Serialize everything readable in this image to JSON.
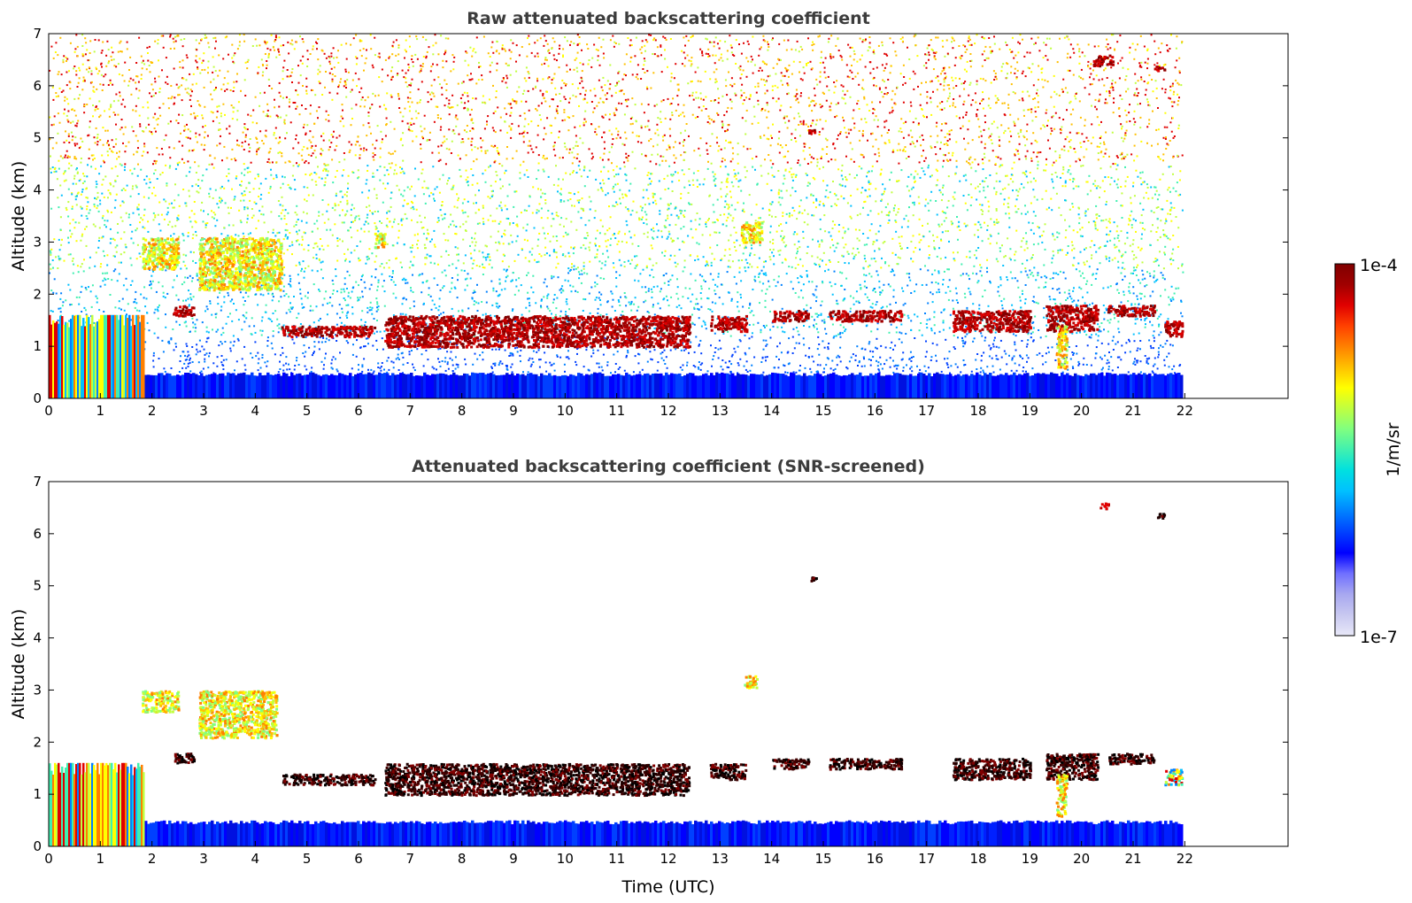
{
  "chart_data": [
    {
      "type": "heatmap",
      "title": "Raw attenuated backscattering coefficient",
      "xlabel": "",
      "ylabel": "Altitude (km)",
      "xlim": [
        0,
        24
      ],
      "ylim": [
        0,
        7
      ],
      "xticks": [
        "0",
        "1",
        "2",
        "3",
        "4",
        "5",
        "6",
        "7",
        "8",
        "9",
        "10",
        "11",
        "12",
        "13",
        "14",
        "15",
        "16",
        "17",
        "18",
        "19",
        "20",
        "21",
        "22"
      ],
      "yticks": [
        "0",
        "1",
        "2",
        "3",
        "4",
        "5",
        "6",
        "7"
      ],
      "data_time_range": [
        0,
        21.95
      ],
      "features": [
        {
          "kind": "boundary_layer",
          "x": [
            0,
            21.95
          ],
          "y": [
            0,
            0.5
          ],
          "level": "low"
        },
        {
          "kind": "dense_cloud",
          "x": [
            0,
            1.85
          ],
          "y": [
            0,
            1.6
          ],
          "level": "mixed"
        },
        {
          "kind": "aerosol_layer",
          "x": [
            1.8,
            2.5
          ],
          "y": [
            2.5,
            3.1
          ],
          "level": "mid"
        },
        {
          "kind": "aerosol_layer",
          "x": [
            2.9,
            4.5
          ],
          "y": [
            2.1,
            3.1
          ],
          "level": "mid"
        },
        {
          "kind": "aerosol_layer",
          "x": [
            6.3,
            6.5
          ],
          "y": [
            2.9,
            3.2
          ],
          "level": "mid"
        },
        {
          "kind": "aerosol_layer",
          "x": [
            13.4,
            13.8
          ],
          "y": [
            3.0,
            3.4
          ],
          "level": "mid"
        },
        {
          "kind": "cloud_layer",
          "x": [
            2.4,
            2.8
          ],
          "y": [
            1.6,
            1.8
          ],
          "level": "high"
        },
        {
          "kind": "cloud_layer",
          "x": [
            4.5,
            6.3
          ],
          "y": [
            1.2,
            1.4
          ],
          "level": "high"
        },
        {
          "kind": "cloud_layer",
          "x": [
            6.5,
            12.4
          ],
          "y": [
            1.0,
            1.6
          ],
          "level": "high"
        },
        {
          "kind": "cloud_layer",
          "x": [
            12.8,
            13.5
          ],
          "y": [
            1.3,
            1.6
          ],
          "level": "high"
        },
        {
          "kind": "cloud_layer",
          "x": [
            14.0,
            14.7
          ],
          "y": [
            1.5,
            1.7
          ],
          "level": "high"
        },
        {
          "kind": "cloud_layer",
          "x": [
            15.1,
            16.5
          ],
          "y": [
            1.5,
            1.7
          ],
          "level": "high"
        },
        {
          "kind": "cloud_layer",
          "x": [
            17.5,
            19.0
          ],
          "y": [
            1.3,
            1.7
          ],
          "level": "high"
        },
        {
          "kind": "cloud_layer",
          "x": [
            19.3,
            20.3
          ],
          "y": [
            1.3,
            1.8
          ],
          "level": "high"
        },
        {
          "kind": "cloud_layer",
          "x": [
            20.5,
            21.4
          ],
          "y": [
            1.6,
            1.8
          ],
          "level": "high"
        },
        {
          "kind": "cloud_layer",
          "x": [
            21.6,
            21.95
          ],
          "y": [
            1.2,
            1.5
          ],
          "level": "high"
        },
        {
          "kind": "virga",
          "x": [
            19.5,
            19.7
          ],
          "y": [
            0.6,
            1.4
          ],
          "level": "mid"
        },
        {
          "kind": "cloud_patch",
          "x": [
            20.2,
            20.6
          ],
          "y": [
            6.4,
            6.6
          ],
          "level": "high"
        },
        {
          "kind": "cloud_patch",
          "x": [
            21.4,
            21.6
          ],
          "y": [
            6.3,
            6.4
          ],
          "level": "high"
        },
        {
          "kind": "cloud_patch",
          "x": [
            14.7,
            14.9
          ],
          "y": [
            5.1,
            5.2
          ],
          "level": "high"
        }
      ],
      "noise_region": {
        "x": [
          0,
          21.95
        ],
        "y": [
          0.5,
          7
        ]
      }
    },
    {
      "type": "heatmap",
      "title": "Attenuated backscattering coefficient (SNR-screened)",
      "xlabel": "Time (UTC)",
      "ylabel": "Altitude (km)",
      "xlim": [
        0,
        24
      ],
      "ylim": [
        0,
        7
      ],
      "xticks": [
        "0",
        "1",
        "2",
        "3",
        "4",
        "5",
        "6",
        "7",
        "8",
        "9",
        "10",
        "11",
        "12",
        "13",
        "14",
        "15",
        "16",
        "17",
        "18",
        "19",
        "20",
        "21",
        "22"
      ],
      "yticks": [
        "0",
        "1",
        "2",
        "3",
        "4",
        "5",
        "6",
        "7"
      ],
      "data_time_range": [
        0,
        21.95
      ],
      "features": [
        {
          "kind": "boundary_layer",
          "x": [
            1.8,
            21.95
          ],
          "y": [
            0,
            0.5
          ],
          "level": "low"
        },
        {
          "kind": "dense_cloud",
          "x": [
            0,
            1.85
          ],
          "y": [
            0,
            1.6
          ],
          "level": "mixed"
        },
        {
          "kind": "aerosol_layer",
          "x": [
            1.8,
            2.5
          ],
          "y": [
            2.6,
            3.0
          ],
          "level": "mid"
        },
        {
          "kind": "aerosol_layer",
          "x": [
            2.9,
            4.4
          ],
          "y": [
            2.1,
            3.0
          ],
          "level": "mid"
        },
        {
          "kind": "aerosol_layer",
          "x": [
            13.45,
            13.7
          ],
          "y": [
            3.05,
            3.3
          ],
          "level": "mid"
        },
        {
          "kind": "cloud_layer",
          "x": [
            2.4,
            2.8
          ],
          "y": [
            1.6,
            1.8
          ],
          "level": "black"
        },
        {
          "kind": "cloud_layer",
          "x": [
            4.5,
            6.3
          ],
          "y": [
            1.2,
            1.4
          ],
          "level": "black"
        },
        {
          "kind": "cloud_layer",
          "x": [
            6.5,
            12.4
          ],
          "y": [
            1.0,
            1.6
          ],
          "level": "black"
        },
        {
          "kind": "cloud_layer",
          "x": [
            12.8,
            13.5
          ],
          "y": [
            1.3,
            1.6
          ],
          "level": "black"
        },
        {
          "kind": "cloud_layer",
          "x": [
            14.0,
            14.7
          ],
          "y": [
            1.5,
            1.7
          ],
          "level": "black"
        },
        {
          "kind": "cloud_layer",
          "x": [
            15.1,
            16.5
          ],
          "y": [
            1.5,
            1.7
          ],
          "level": "black"
        },
        {
          "kind": "cloud_layer",
          "x": [
            17.5,
            19.0
          ],
          "y": [
            1.3,
            1.7
          ],
          "level": "black"
        },
        {
          "kind": "cloud_layer",
          "x": [
            19.3,
            20.3
          ],
          "y": [
            1.3,
            1.8
          ],
          "level": "black"
        },
        {
          "kind": "cloud_layer",
          "x": [
            20.5,
            21.4
          ],
          "y": [
            1.6,
            1.8
          ],
          "level": "black"
        },
        {
          "kind": "cloud_layer",
          "x": [
            21.6,
            21.95
          ],
          "y": [
            1.2,
            1.5
          ],
          "level": "mixed"
        },
        {
          "kind": "virga",
          "x": [
            19.5,
            19.7
          ],
          "y": [
            0.6,
            1.4
          ],
          "level": "mid"
        },
        {
          "kind": "cloud_patch",
          "x": [
            20.35,
            20.55
          ],
          "y": [
            6.5,
            6.6
          ],
          "level": "high"
        },
        {
          "kind": "cloud_patch",
          "x": [
            21.45,
            21.6
          ],
          "y": [
            6.3,
            6.4
          ],
          "level": "black"
        },
        {
          "kind": "cloud_patch",
          "x": [
            14.75,
            14.85
          ],
          "y": [
            5.1,
            5.2
          ],
          "level": "black"
        }
      ]
    }
  ],
  "colorbar": {
    "label": "1/m/sr",
    "max_label": "1e-4",
    "min_label": "1e-7",
    "colormap": "jet",
    "colors": [
      "#e8e8f8",
      "#c8c8f0",
      "#a8a8f0",
      "#7070ff",
      "#0000ff",
      "#0040ff",
      "#0080ff",
      "#00c0ff",
      "#00e0e0",
      "#40f0b0",
      "#80ff80",
      "#c0ff40",
      "#ffff00",
      "#ffc000",
      "#ff8000",
      "#ff4000",
      "#e00000",
      "#a00000",
      "#800000"
    ]
  }
}
